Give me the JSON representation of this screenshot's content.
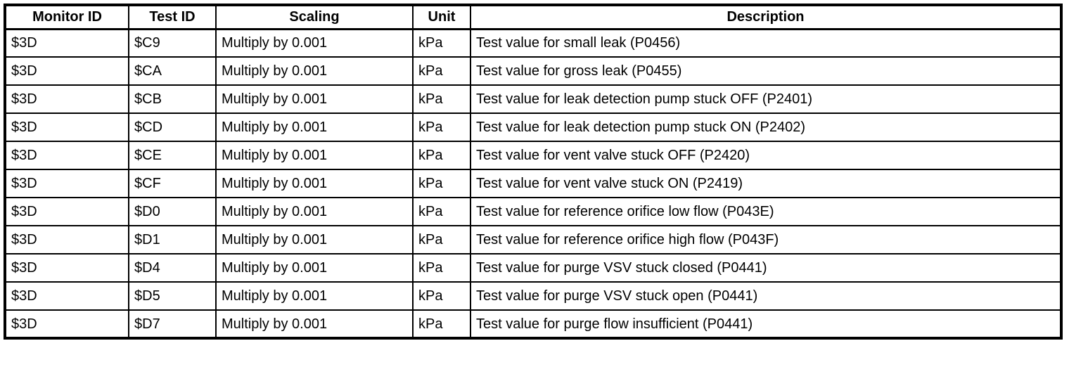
{
  "page": {
    "background_color": "#ffffff",
    "text_color": "#000000",
    "border_color": "#000000"
  },
  "table": {
    "columns": [
      {
        "key": "monitor_id",
        "label": "Monitor ID"
      },
      {
        "key": "test_id",
        "label": "Test ID"
      },
      {
        "key": "scaling",
        "label": "Scaling"
      },
      {
        "key": "unit",
        "label": "Unit"
      },
      {
        "key": "description",
        "label": "Description"
      }
    ],
    "rows": [
      {
        "monitor_id": "$3D",
        "test_id": "$C9",
        "scaling": "Multiply by 0.001",
        "unit": "kPa",
        "description": "Test value for small leak (P0456)"
      },
      {
        "monitor_id": "$3D",
        "test_id": "$CA",
        "scaling": "Multiply by 0.001",
        "unit": "kPa",
        "description": "Test value for gross leak (P0455)"
      },
      {
        "monitor_id": "$3D",
        "test_id": "$CB",
        "scaling": "Multiply by 0.001",
        "unit": "kPa",
        "description": "Test value for leak detection pump stuck OFF (P2401)"
      },
      {
        "monitor_id": "$3D",
        "test_id": "$CD",
        "scaling": "Multiply by 0.001",
        "unit": "kPa",
        "description": "Test value for leak detection pump stuck ON (P2402)"
      },
      {
        "monitor_id": "$3D",
        "test_id": "$CE",
        "scaling": "Multiply by 0.001",
        "unit": "kPa",
        "description": "Test value for vent valve stuck OFF (P2420)"
      },
      {
        "monitor_id": "$3D",
        "test_id": "$CF",
        "scaling": "Multiply by 0.001",
        "unit": "kPa",
        "description": "Test value for vent valve stuck ON (P2419)"
      },
      {
        "monitor_id": "$3D",
        "test_id": "$D0",
        "scaling": "Multiply by 0.001",
        "unit": "kPa",
        "description": "Test value for reference orifice low flow (P043E)"
      },
      {
        "monitor_id": "$3D",
        "test_id": "$D1",
        "scaling": "Multiply by 0.001",
        "unit": "kPa",
        "description": "Test value for reference orifice high flow (P043F)"
      },
      {
        "monitor_id": "$3D",
        "test_id": "$D4",
        "scaling": "Multiply by 0.001",
        "unit": "kPa",
        "description": "Test value for purge VSV stuck closed (P0441)"
      },
      {
        "monitor_id": "$3D",
        "test_id": "$D5",
        "scaling": "Multiply by 0.001",
        "unit": "kPa",
        "description": "Test value for purge VSV stuck open (P0441)"
      },
      {
        "monitor_id": "$3D",
        "test_id": "$D7",
        "scaling": "Multiply by 0.001",
        "unit": "kPa",
        "description": "Test value for purge flow insufficient (P0441)"
      }
    ]
  }
}
